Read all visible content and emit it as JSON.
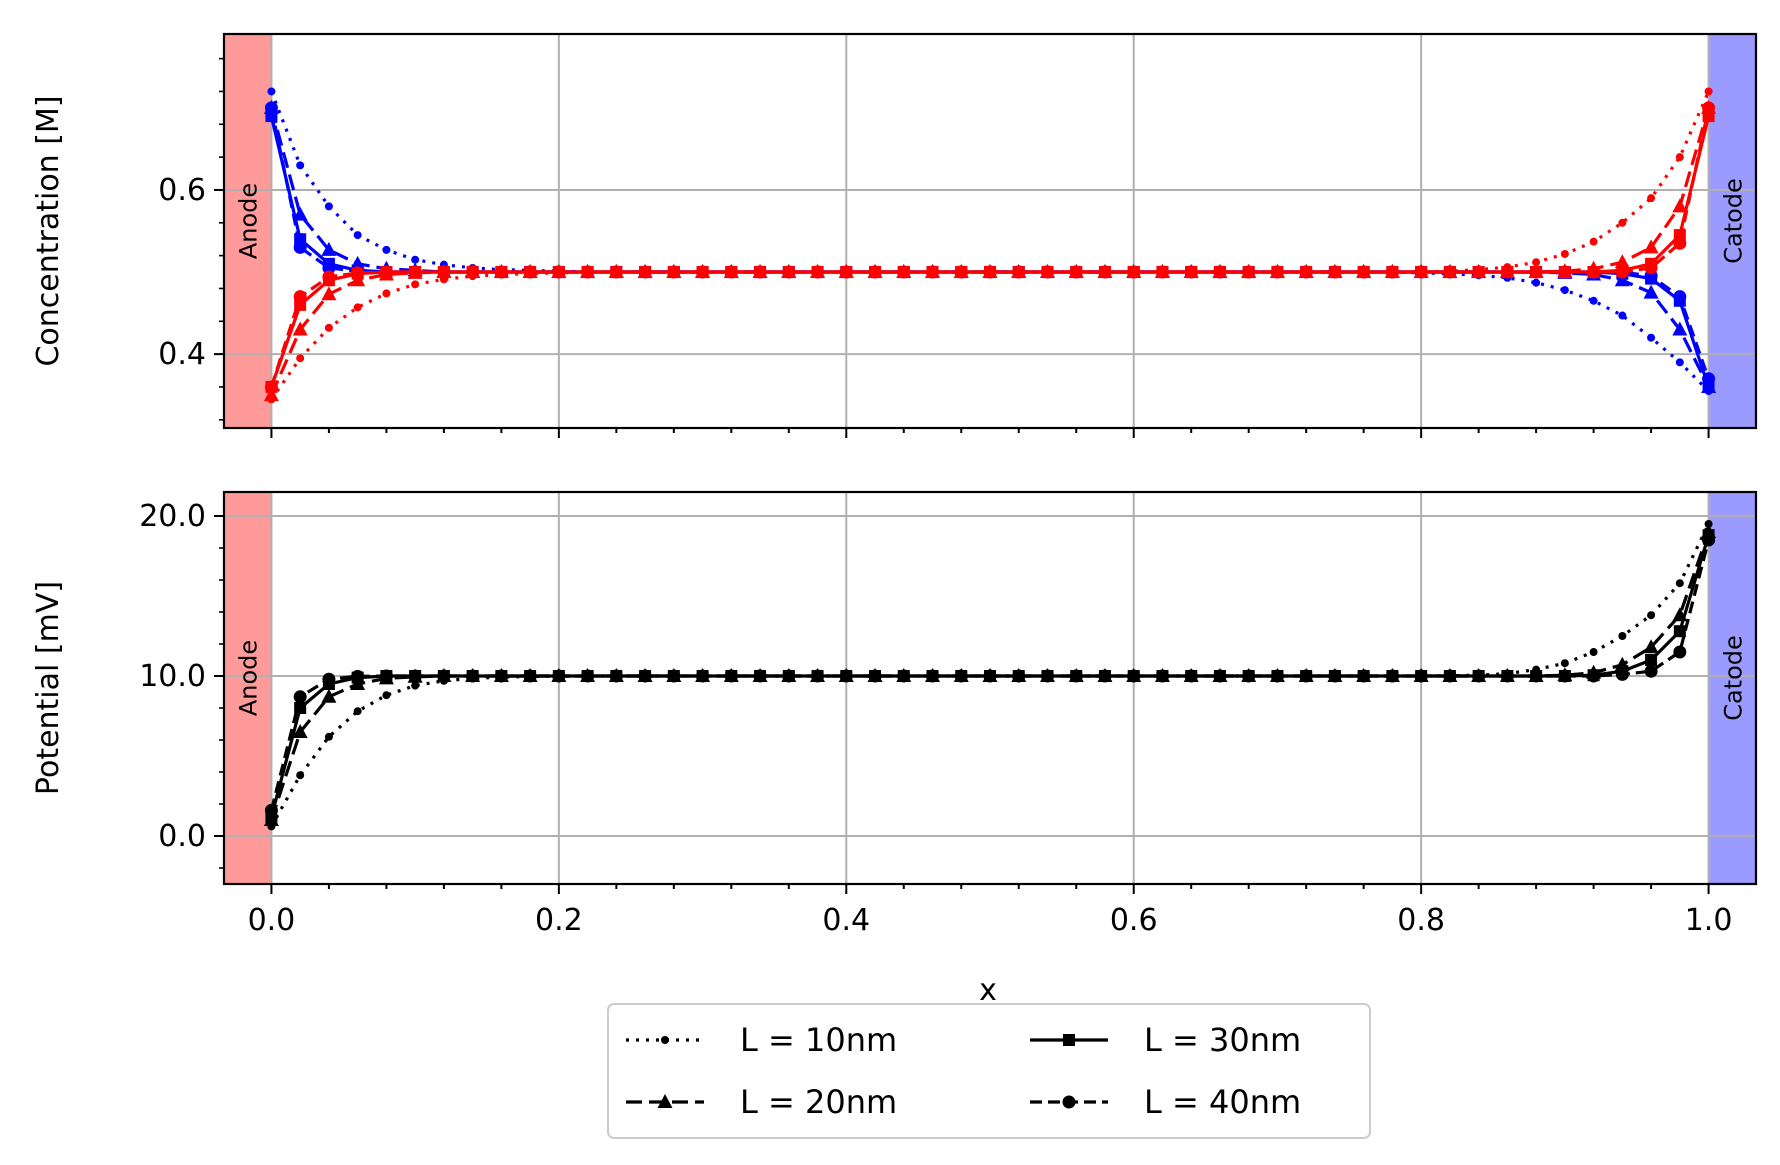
{
  "chart_data": [
    {
      "type": "line",
      "panel": "top",
      "ylabel": "Concentration [M]",
      "xlabel": "",
      "xlim": [
        -0.033,
        1.033
      ],
      "ylim": [
        0.31,
        0.79
      ],
      "yticks": [
        0.4,
        0.6
      ],
      "ytick_labels": [
        "0.4",
        "0.6"
      ],
      "grid": true,
      "regions": [
        {
          "label": "Anode",
          "x0": -0.033,
          "x1": 0.0,
          "color": "#ff9a9a"
        },
        {
          "label": "Catode",
          "x0": 1.0,
          "x1": 1.033,
          "color": "#9a9aff"
        }
      ],
      "x": [
        0,
        0.02,
        0.04,
        0.06,
        0.08,
        0.1,
        0.12,
        0.14,
        0.16,
        0.18,
        0.2,
        0.22,
        0.24,
        0.26,
        0.28,
        0.3,
        0.32,
        0.34,
        0.36,
        0.38,
        0.4,
        0.42,
        0.44,
        0.46,
        0.48,
        0.5,
        0.52,
        0.54,
        0.56,
        0.58,
        0.6,
        0.62,
        0.64,
        0.66,
        0.68,
        0.7,
        0.72,
        0.74,
        0.76,
        0.78,
        0.8,
        0.82,
        0.84,
        0.86,
        0.88,
        0.9,
        0.92,
        0.94,
        0.96,
        0.98,
        1.0
      ],
      "series": [
        {
          "species": "blue",
          "L": "L = 10nm",
          "color": "#0000ff",
          "dash": "dot",
          "marker": "point",
          "values": [
            0.72,
            0.63,
            0.58,
            0.545,
            0.527,
            0.515,
            0.509,
            0.505,
            0.503,
            0.502,
            0.501,
            0.5,
            0.5,
            0.5,
            0.5,
            0.5,
            0.5,
            0.5,
            0.5,
            0.5,
            0.5,
            0.5,
            0.5,
            0.5,
            0.5,
            0.5,
            0.5,
            0.5,
            0.5,
            0.5,
            0.5,
            0.5,
            0.5,
            0.5,
            0.5,
            0.5,
            0.5,
            0.5,
            0.5,
            0.5,
            0.499,
            0.498,
            0.496,
            0.493,
            0.487,
            0.478,
            0.465,
            0.447,
            0.42,
            0.39,
            0.355
          ]
        },
        {
          "species": "blue",
          "L": "L = 20nm",
          "color": "#0000ff",
          "dash": "dash",
          "marker": "triangle",
          "values": [
            0.7,
            0.57,
            0.527,
            0.51,
            0.504,
            0.502,
            0.5,
            0.5,
            0.5,
            0.5,
            0.5,
            0.5,
            0.5,
            0.5,
            0.5,
            0.5,
            0.5,
            0.5,
            0.5,
            0.5,
            0.5,
            0.5,
            0.5,
            0.5,
            0.5,
            0.5,
            0.5,
            0.5,
            0.5,
            0.5,
            0.5,
            0.5,
            0.5,
            0.5,
            0.5,
            0.5,
            0.5,
            0.5,
            0.5,
            0.5,
            0.5,
            0.5,
            0.5,
            0.5,
            0.5,
            0.499,
            0.497,
            0.49,
            0.475,
            0.43,
            0.36
          ]
        },
        {
          "species": "blue",
          "L": "L = 30nm",
          "color": "#0000ff",
          "dash": "solid",
          "marker": "square",
          "values": [
            0.69,
            0.54,
            0.51,
            0.502,
            0.5,
            0.5,
            0.5,
            0.5,
            0.5,
            0.5,
            0.5,
            0.5,
            0.5,
            0.5,
            0.5,
            0.5,
            0.5,
            0.5,
            0.5,
            0.5,
            0.5,
            0.5,
            0.5,
            0.5,
            0.5,
            0.5,
            0.5,
            0.5,
            0.5,
            0.5,
            0.5,
            0.5,
            0.5,
            0.5,
            0.5,
            0.5,
            0.5,
            0.5,
            0.5,
            0.5,
            0.5,
            0.5,
            0.5,
            0.5,
            0.5,
            0.5,
            0.5,
            0.498,
            0.492,
            0.465,
            0.36
          ]
        },
        {
          "species": "blue",
          "L": "L = 40nm",
          "color": "#0000ff",
          "dash": "dashdot",
          "marker": "circle",
          "values": [
            0.7,
            0.53,
            0.505,
            0.501,
            0.5,
            0.5,
            0.5,
            0.5,
            0.5,
            0.5,
            0.5,
            0.5,
            0.5,
            0.5,
            0.5,
            0.5,
            0.5,
            0.5,
            0.5,
            0.5,
            0.5,
            0.5,
            0.5,
            0.5,
            0.5,
            0.5,
            0.5,
            0.5,
            0.5,
            0.5,
            0.5,
            0.5,
            0.5,
            0.5,
            0.5,
            0.5,
            0.5,
            0.5,
            0.5,
            0.5,
            0.5,
            0.5,
            0.5,
            0.5,
            0.5,
            0.5,
            0.5,
            0.5,
            0.495,
            0.47,
            0.37
          ]
        },
        {
          "species": "red",
          "L": "L = 10nm",
          "color": "#ff0000",
          "dash": "dot",
          "marker": "point",
          "values": [
            0.345,
            0.395,
            0.432,
            0.457,
            0.474,
            0.485,
            0.491,
            0.495,
            0.497,
            0.498,
            0.499,
            0.5,
            0.5,
            0.5,
            0.5,
            0.5,
            0.5,
            0.5,
            0.5,
            0.5,
            0.5,
            0.5,
            0.5,
            0.5,
            0.5,
            0.5,
            0.5,
            0.5,
            0.5,
            0.5,
            0.5,
            0.5,
            0.5,
            0.5,
            0.5,
            0.5,
            0.5,
            0.5,
            0.5,
            0.5,
            0.5,
            0.501,
            0.503,
            0.506,
            0.512,
            0.522,
            0.537,
            0.56,
            0.59,
            0.64,
            0.72
          ]
        },
        {
          "species": "red",
          "L": "L = 20nm",
          "color": "#ff0000",
          "dash": "dash",
          "marker": "triangle",
          "values": [
            0.35,
            0.43,
            0.473,
            0.49,
            0.497,
            0.499,
            0.5,
            0.5,
            0.5,
            0.5,
            0.5,
            0.5,
            0.5,
            0.5,
            0.5,
            0.5,
            0.5,
            0.5,
            0.5,
            0.5,
            0.5,
            0.5,
            0.5,
            0.5,
            0.5,
            0.5,
            0.5,
            0.5,
            0.5,
            0.5,
            0.5,
            0.5,
            0.5,
            0.5,
            0.5,
            0.5,
            0.5,
            0.5,
            0.5,
            0.5,
            0.5,
            0.5,
            0.5,
            0.5,
            0.5,
            0.501,
            0.504,
            0.512,
            0.53,
            0.58,
            0.7
          ]
        },
        {
          "species": "red",
          "L": "L = 30nm",
          "color": "#ff0000",
          "dash": "solid",
          "marker": "square",
          "values": [
            0.36,
            0.46,
            0.49,
            0.498,
            0.5,
            0.5,
            0.5,
            0.5,
            0.5,
            0.5,
            0.5,
            0.5,
            0.5,
            0.5,
            0.5,
            0.5,
            0.5,
            0.5,
            0.5,
            0.5,
            0.5,
            0.5,
            0.5,
            0.5,
            0.5,
            0.5,
            0.5,
            0.5,
            0.5,
            0.5,
            0.5,
            0.5,
            0.5,
            0.5,
            0.5,
            0.5,
            0.5,
            0.5,
            0.5,
            0.5,
            0.5,
            0.5,
            0.5,
            0.5,
            0.5,
            0.5,
            0.5,
            0.502,
            0.51,
            0.545,
            0.69
          ]
        },
        {
          "species": "red",
          "L": "L = 40nm",
          "color": "#ff0000",
          "dash": "dashdot",
          "marker": "circle",
          "values": [
            0.36,
            0.47,
            0.494,
            0.499,
            0.5,
            0.5,
            0.5,
            0.5,
            0.5,
            0.5,
            0.5,
            0.5,
            0.5,
            0.5,
            0.5,
            0.5,
            0.5,
            0.5,
            0.5,
            0.5,
            0.5,
            0.5,
            0.5,
            0.5,
            0.5,
            0.5,
            0.5,
            0.5,
            0.5,
            0.5,
            0.5,
            0.5,
            0.5,
            0.5,
            0.5,
            0.5,
            0.5,
            0.5,
            0.5,
            0.5,
            0.5,
            0.5,
            0.5,
            0.5,
            0.5,
            0.5,
            0.5,
            0.5,
            0.505,
            0.535,
            0.7
          ]
        }
      ]
    },
    {
      "type": "line",
      "panel": "bottom",
      "ylabel": "Potential [mV]",
      "xlabel": "x",
      "xlim": [
        -0.033,
        1.033
      ],
      "ylim": [
        -3,
        21.5
      ],
      "xticks": [
        0.0,
        0.2,
        0.4,
        0.6,
        0.8,
        1.0
      ],
      "xtick_labels": [
        "0.0",
        "0.2",
        "0.4",
        "0.6",
        "0.8",
        "1.0"
      ],
      "yticks": [
        0,
        10,
        20
      ],
      "ytick_labels": [
        "0.0",
        "10.0",
        "20.0"
      ],
      "grid": true,
      "regions": [
        {
          "label": "Anode",
          "x0": -0.033,
          "x1": 0.0,
          "color": "#ff9a9a"
        },
        {
          "label": "Catode",
          "x0": 1.0,
          "x1": 1.033,
          "color": "#9a9aff"
        }
      ],
      "x": [
        0,
        0.02,
        0.04,
        0.06,
        0.08,
        0.1,
        0.12,
        0.14,
        0.16,
        0.18,
        0.2,
        0.22,
        0.24,
        0.26,
        0.28,
        0.3,
        0.32,
        0.34,
        0.36,
        0.38,
        0.4,
        0.42,
        0.44,
        0.46,
        0.48,
        0.5,
        0.52,
        0.54,
        0.56,
        0.58,
        0.6,
        0.62,
        0.64,
        0.66,
        0.68,
        0.7,
        0.72,
        0.74,
        0.76,
        0.78,
        0.8,
        0.82,
        0.84,
        0.86,
        0.88,
        0.9,
        0.92,
        0.94,
        0.96,
        0.98,
        1.0
      ],
      "series": [
        {
          "L": "L = 10nm",
          "color": "#000000",
          "dash": "dot",
          "marker": "point",
          "values": [
            0.6,
            3.8,
            6.2,
            7.8,
            8.8,
            9.4,
            9.7,
            9.85,
            9.93,
            9.97,
            9.99,
            10,
            10,
            10,
            10,
            10,
            10,
            10,
            10,
            10,
            10,
            10,
            10,
            10,
            10,
            10,
            10,
            10,
            10,
            10,
            10,
            10,
            10,
            10,
            10,
            10,
            10,
            10,
            10,
            10,
            10,
            10.02,
            10.05,
            10.15,
            10.4,
            10.8,
            11.5,
            12.5,
            13.8,
            15.8,
            19.5
          ]
        },
        {
          "L": "L = 20nm",
          "color": "#000000",
          "dash": "dash",
          "marker": "triangle",
          "values": [
            1.0,
            6.5,
            8.7,
            9.5,
            9.85,
            9.95,
            10,
            10,
            10,
            10,
            10,
            10,
            10,
            10,
            10,
            10,
            10,
            10,
            10,
            10,
            10,
            10,
            10,
            10,
            10,
            10,
            10,
            10,
            10,
            10,
            10,
            10,
            10,
            10,
            10,
            10,
            10,
            10,
            10,
            10,
            10,
            10,
            10,
            10,
            10,
            10.05,
            10.2,
            10.7,
            11.8,
            13.8,
            19
          ]
        },
        {
          "L": "L = 30nm",
          "color": "#000000",
          "dash": "solid",
          "marker": "square",
          "values": [
            1.2,
            8.0,
            9.5,
            9.9,
            10,
            10,
            10,
            10,
            10,
            10,
            10,
            10,
            10,
            10,
            10,
            10,
            10,
            10,
            10,
            10,
            10,
            10,
            10,
            10,
            10,
            10,
            10,
            10,
            10,
            10,
            10,
            10,
            10,
            10,
            10,
            10,
            10,
            10,
            10,
            10,
            10,
            10,
            10,
            10,
            10,
            10,
            10.05,
            10.3,
            11.0,
            12.8,
            18.8
          ]
        },
        {
          "L": "L = 40nm",
          "color": "#000000",
          "dash": "dashdot",
          "marker": "circle",
          "values": [
            1.6,
            8.7,
            9.8,
            9.98,
            10,
            10,
            10,
            10,
            10,
            10,
            10,
            10,
            10,
            10,
            10,
            10,
            10,
            10,
            10,
            10,
            10,
            10,
            10,
            10,
            10,
            10,
            10,
            10,
            10,
            10,
            10,
            10,
            10,
            10,
            10,
            10,
            10,
            10,
            10,
            10,
            10,
            10,
            10,
            10,
            10,
            10,
            10,
            10.1,
            10.3,
            11.5,
            18.5
          ]
        }
      ]
    }
  ],
  "legend": {
    "placement": "bottom-center",
    "ncol": 2,
    "entries": [
      {
        "label": "L = 10nm",
        "dash": "dot",
        "marker": "point"
      },
      {
        "label": "L = 30nm",
        "dash": "solid",
        "marker": "square"
      },
      {
        "label": "L = 20nm",
        "dash": "dash",
        "marker": "triangle"
      },
      {
        "label": "L = 40nm",
        "dash": "dashdot",
        "marker": "circle"
      }
    ]
  }
}
